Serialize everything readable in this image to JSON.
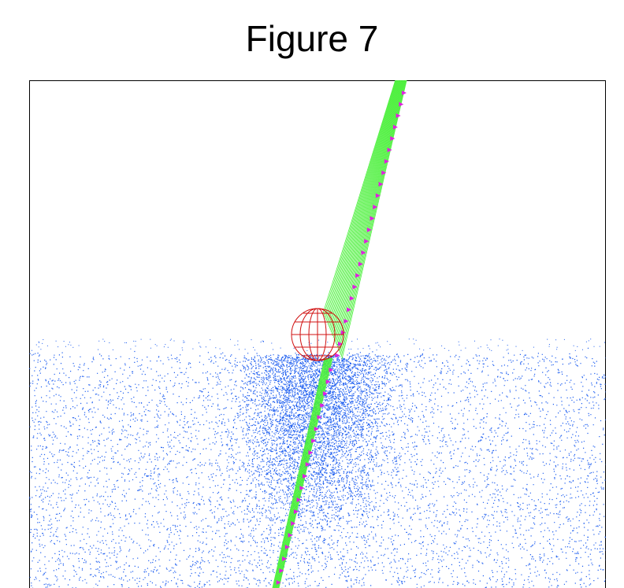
{
  "header": {
    "title": "Figure 7"
  }
}
